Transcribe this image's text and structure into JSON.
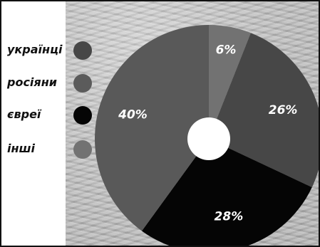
{
  "chart_data": {
    "type": "pie",
    "title": "",
    "donut": true,
    "categories": [
      "українці",
      "росіяни",
      "євреї",
      "інші"
    ],
    "values": [
      26,
      28,
      40,
      6
    ],
    "slice_labels": [
      "26%",
      "28%",
      "40%",
      "6%"
    ],
    "colors": [
      "#474747",
      "#050505",
      "#595959",
      "#727272"
    ],
    "legend": {
      "placement": "left",
      "entries": [
        {
          "label": "українці",
          "color": "#474747"
        },
        {
          "label": "росіяни",
          "color": "#5b5b5b"
        },
        {
          "label": "євреї",
          "color": "#050505"
        },
        {
          "label": "інші",
          "color": "#727272"
        }
      ]
    }
  }
}
